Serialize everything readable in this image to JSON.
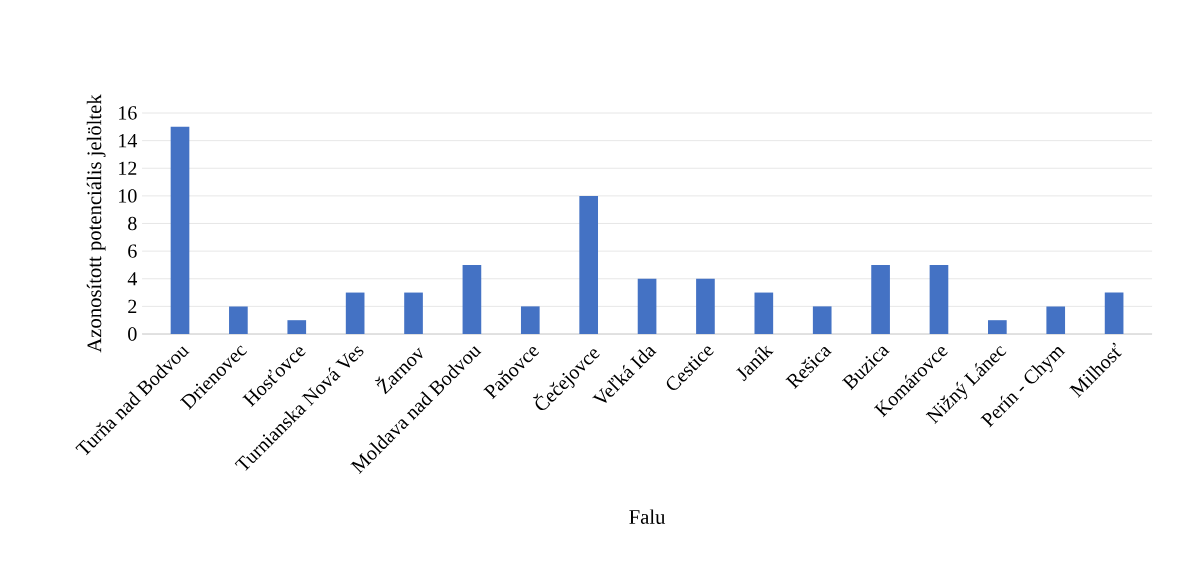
{
  "chart_data": {
    "type": "bar",
    "xlabel": "Falu",
    "ylabel": "Azonosított  potenciális jelöltek",
    "categories": [
      "Turňa nad Bodvou",
      "Drienovec",
      "Hosťovce",
      "Turnianska Nová Ves",
      "Žarnov",
      "Moldava nad Bodvou",
      "Paňovce",
      "Čečejovce",
      "Veľká Ida",
      "Cestice",
      "Janík",
      "Rešica",
      "Buzica",
      "Komárovce",
      "Nižný Lánec",
      "Perín - Chym",
      "Milhosť"
    ],
    "values": [
      15,
      2,
      1,
      3,
      3,
      5,
      2,
      10,
      4,
      4,
      3,
      2,
      5,
      5,
      1,
      2,
      3
    ],
    "color": "#4472c4",
    "ylim": [
      0,
      16
    ],
    "yticks": [
      0,
      2,
      4,
      6,
      8,
      10,
      12,
      14,
      16
    ],
    "grid": "y"
  }
}
